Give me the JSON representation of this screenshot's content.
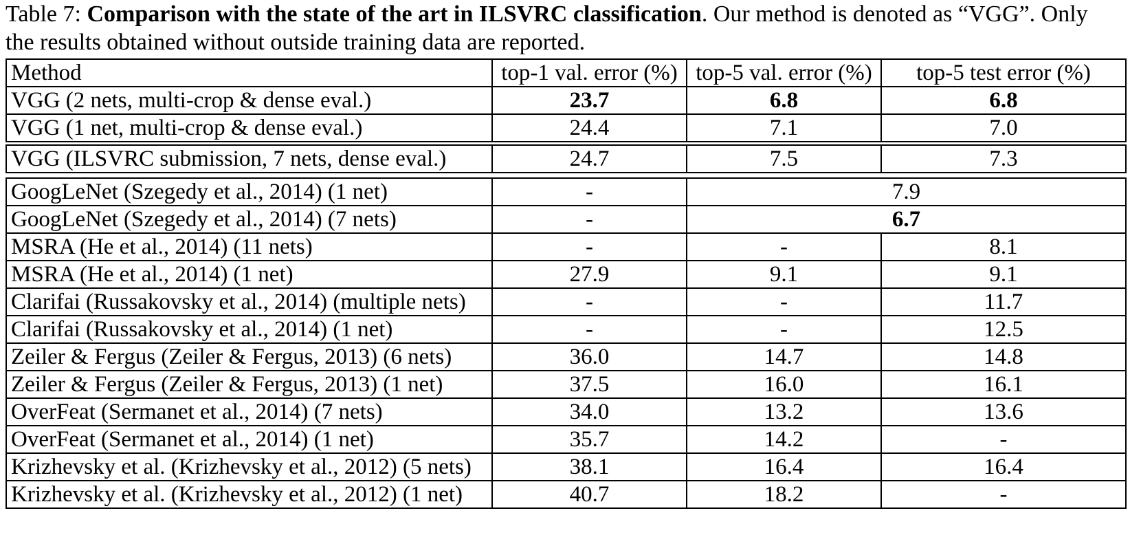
{
  "caption": {
    "prefix": "Table 7: ",
    "bold": "Comparison with the state of the art in ILSVRC classification",
    "suffix": ". Our method is denoted as “VGG”. Only the results obtained without outside training data are reported."
  },
  "header": [
    "Method",
    "top-1 val. error (%)",
    "top-5 val. error (%)",
    "top-5 test error (%)"
  ],
  "group1": [
    {
      "method": "VGG (2 nets, multi-crop & dense eval.)",
      "top1": "23.7",
      "top5val": "6.8",
      "top5test": "6.8"
    },
    {
      "method": "VGG (1 net, multi-crop & dense eval.)",
      "top1": "24.4",
      "top5val": "7.1",
      "top5test": "7.0"
    }
  ],
  "group2": [
    {
      "method": "VGG (ILSVRC submission, 7 nets, dense eval.)",
      "top1": "24.7",
      "top5val": "7.5",
      "top5test": "7.3"
    }
  ],
  "group3": [
    {
      "method": "GoogLeNet (Szegedy et al., 2014) (1 net)",
      "top1": "-",
      "top5merged": "7.9"
    },
    {
      "method": "GoogLeNet (Szegedy et al., 2014) (7 nets)",
      "top1": "-",
      "top5merged": "6.7"
    },
    {
      "method": "MSRA (He et al., 2014) (11 nets)",
      "top1": "-",
      "top5val": "-",
      "top5test": "8.1"
    },
    {
      "method": "MSRA (He et al., 2014) (1 net)",
      "top1": "27.9",
      "top5val": "9.1",
      "top5test": "9.1"
    },
    {
      "method": "Clarifai (Russakovsky et al., 2014) (multiple nets)",
      "top1": "-",
      "top5val": "-",
      "top5test": "11.7"
    },
    {
      "method": "Clarifai (Russakovsky et al., 2014) (1 net)",
      "top1": "-",
      "top5val": "-",
      "top5test": "12.5"
    },
    {
      "method": "Zeiler & Fergus (Zeiler & Fergus, 2013) (6 nets)",
      "top1": "36.0",
      "top5val": "14.7",
      "top5test": "14.8"
    },
    {
      "method": "Zeiler & Fergus (Zeiler & Fergus, 2013) (1 net)",
      "top1": "37.5",
      "top5val": "16.0",
      "top5test": "16.1"
    },
    {
      "method": "OverFeat (Sermanet et al., 2014) (7 nets)",
      "top1": "34.0",
      "top5val": "13.2",
      "top5test": "13.6"
    },
    {
      "method": "OverFeat (Sermanet et al., 2014) (1 net)",
      "top1": "35.7",
      "top5val": "14.2",
      "top5test": "-"
    },
    {
      "method": "Krizhevsky et al. (Krizhevsky et al., 2012) (5 nets)",
      "top1": "38.1",
      "top5val": "16.4",
      "top5test": "16.4"
    },
    {
      "method": "Krizhevsky et al. (Krizhevsky et al., 2012) (1 net)",
      "top1": "40.7",
      "top5val": "18.2",
      "top5test": "-"
    }
  ]
}
